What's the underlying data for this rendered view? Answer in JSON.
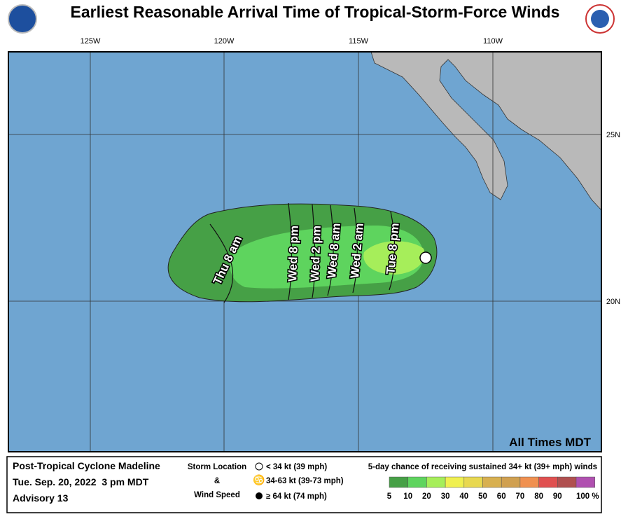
{
  "header": {
    "title": "Earliest Reasonable Arrival Time of Tropical-Storm-Force Winds"
  },
  "map": {
    "longitude_labels": [
      "125W",
      "120W",
      "115W",
      "110W"
    ],
    "latitude_labels": [
      "25N",
      "20N"
    ],
    "time_labels": [
      "Thu 8 am",
      "Wed 8 pm",
      "Wed 2 pm",
      "Wed 8 am",
      "Wed 2 am",
      "Tue 8 pm"
    ],
    "note": "All Times MDT"
  },
  "footer": {
    "storm": "Post-Tropical Cyclone Madeline",
    "time": "Tue. Sep. 20, 2022  3 pm MDT",
    "advisory": "Advisory 13",
    "legend_title": [
      "Storm Location",
      "&",
      "Wind Speed"
    ],
    "legend_items": [
      "< 34 kt (39 mph)",
      "34-63 kt (39-73 mph)",
      "≥ 64 kt (74 mph)"
    ],
    "scale_title": "5-day chance of receiving sustained 34+ kt (39+ mph) winds",
    "scale": {
      "labels": [
        "5",
        "10",
        "20",
        "30",
        "40",
        "50",
        "60",
        "70",
        "80",
        "90",
        "100 %"
      ],
      "colors": [
        "#46a046",
        "#5ed45e",
        "#a6ee5a",
        "#f0f050",
        "#e8d850",
        "#d8b050",
        "#d0a050",
        "#f09050",
        "#e05050",
        "#b05050",
        "#b050b0"
      ]
    }
  }
}
